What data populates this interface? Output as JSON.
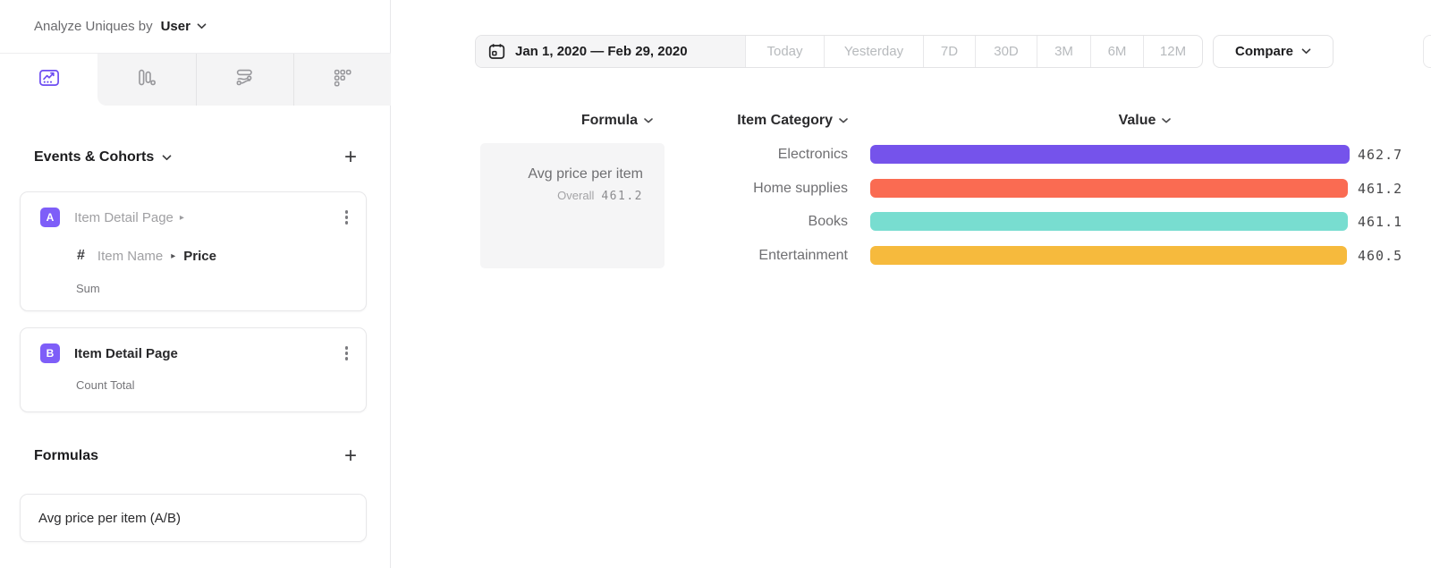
{
  "sidebar": {
    "analyze_label": "Analyze Uniques by",
    "analyze_value": "User",
    "tabs": [
      "line-chart",
      "bar-chart",
      "flows",
      "retention"
    ],
    "events_section": {
      "title": "Events & Cohorts",
      "add_label": "+"
    },
    "events": [
      {
        "badge": "A",
        "title": "Item Detail Page",
        "property_type": "#",
        "property_path": "Item Name",
        "property": "Price",
        "aggregation": "Sum"
      },
      {
        "badge": "B",
        "title": "Item Detail Page",
        "aggregation": "Count Total"
      }
    ],
    "formulas_section": {
      "title": "Formulas",
      "add_label": "+"
    },
    "formulas": [
      {
        "name": "Avg price per item (A/B)"
      }
    ]
  },
  "toolbar": {
    "date_range": "Jan 1, 2020 — Feb 29, 2020",
    "presets": [
      "Today",
      "Yesterday",
      "7D",
      "30D",
      "3M",
      "6M",
      "12M"
    ],
    "compare_label": "Compare"
  },
  "table": {
    "columns": [
      "Formula",
      "Item Category",
      "Value"
    ],
    "formula_cell": {
      "title": "Avg price per item",
      "overall_label": "Overall",
      "overall_value": "461.2"
    }
  },
  "chart_data": {
    "type": "bar",
    "orientation": "horizontal",
    "categories": [
      "Electronics",
      "Home supplies",
      "Books",
      "Entertainment"
    ],
    "values": [
      462.7,
      461.2,
      461.1,
      460.5
    ],
    "value_labels": [
      "462.7",
      "461.2",
      "461.1",
      "460.5"
    ],
    "colors": [
      "#7553eb",
      "#fa6b52",
      "#78ddd0",
      "#f6ba3d"
    ],
    "overall": 461.2,
    "legend": false,
    "grid": false
  },
  "colors": {
    "accent_purple": "#7c5cfa",
    "bar_purple": "#7553eb",
    "bar_red": "#fa6b52",
    "bar_teal": "#78ddd0",
    "bar_amber": "#f6ba3d"
  }
}
